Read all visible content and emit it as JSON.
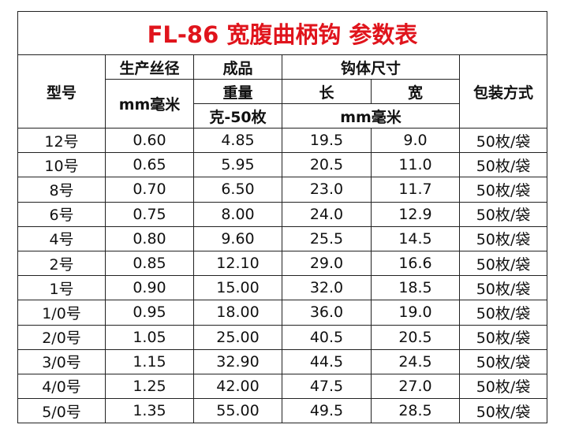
{
  "title": "FL-86 宽腹曲柄钩 参数表",
  "header": {
    "model": "型号",
    "wire": "生产丝径",
    "wire_unit": "mm毫米",
    "product": "成品",
    "weight": "重量",
    "weight_unit": "克-50枚",
    "size": "钩体尺寸",
    "length": "长",
    "width": "宽",
    "size_unit": "mm毫米",
    "packing": "包装方式"
  },
  "table": {
    "rows": [
      [
        "12号",
        "0.60",
        "4.85",
        "19.5",
        "9.0",
        "50枚/袋"
      ],
      [
        "10号",
        "0.65",
        "5.95",
        "20.5",
        "11.0",
        "50枚/袋"
      ],
      [
        "8号",
        "0.70",
        "6.50",
        "23.0",
        "11.7",
        "50枚/袋"
      ],
      [
        "6号",
        "0.75",
        "8.00",
        "24.0",
        "12.9",
        "50枚/袋"
      ],
      [
        "4号",
        "0.80",
        "9.60",
        "25.5",
        "14.5",
        "50枚/袋"
      ],
      [
        "2号",
        "0.85",
        "12.10",
        "29.0",
        "16.6",
        "50枚/袋"
      ],
      [
        "1号",
        "0.90",
        "15.00",
        "32.0",
        "18.5",
        "50枚/袋"
      ],
      [
        "1/0号",
        "0.95",
        "18.00",
        "36.0",
        "19.0",
        "50枚/袋"
      ],
      [
        "2/0号",
        "1.05",
        "25.00",
        "40.5",
        "20.5",
        "50枚/袋"
      ],
      [
        "3/0号",
        "1.15",
        "32.90",
        "44.5",
        "24.5",
        "50枚/袋"
      ],
      [
        "4/0号",
        "1.25",
        "42.00",
        "47.5",
        "27.0",
        "50枚/袋"
      ],
      [
        "5/0号",
        "1.35",
        "55.00",
        "49.5",
        "28.5",
        "50枚/袋"
      ]
    ]
  }
}
